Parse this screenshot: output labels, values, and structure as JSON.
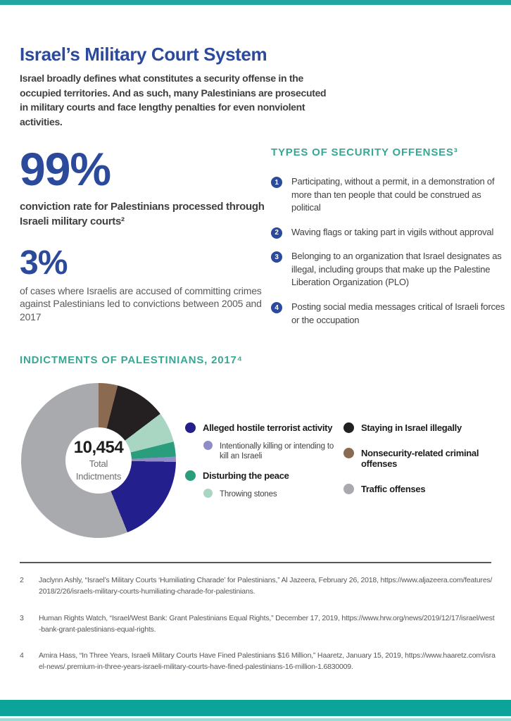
{
  "page": {
    "title": "Israel’s Military Court System",
    "intro": "Israel broadly defines what constitutes a security offense in the occupied territories. And as such, many Palestinians are prosecuted in military courts and face lengthy penalties for even nonviolent activities."
  },
  "stats": [
    {
      "value": "99%",
      "caption": "conviction rate for Palestinians processed through Israeli military courts²"
    },
    {
      "value": "3%",
      "caption": "of cases where Israelis are accused of committing crimes against Palestinians led to convictions between 2005 and 2017"
    }
  ],
  "offenses": {
    "heading": "TYPES OF SECURITY OFFENSES³",
    "items": [
      {
        "num": "1",
        "text": "Participating, without a permit, in a demonstration of more than ten people that could be construed as political"
      },
      {
        "num": "2",
        "text": "Waving flags or taking part in vigils without approval"
      },
      {
        "num": "3",
        "text": "Belonging to an organization that Israel designates as illegal, including groups that make up the Palestine Liberation Organization (PLO)"
      },
      {
        "num": "4",
        "text": "Posting social media messages critical of Israeli forces or the occupation"
      }
    ]
  },
  "chart_data": {
    "type": "pie",
    "subtype": "donut",
    "title": "INDICTMENTS OF PALESTINIANS, 2017⁴",
    "total_value": "10,454",
    "center_label": {
      "value": "10,454",
      "line1": "Total",
      "line2": "Indictments"
    },
    "slices_clockwise_from_top": [
      {
        "label": "Nonsecurity-related criminal offenses",
        "color": "#8a6a50",
        "percent": 4.0
      },
      {
        "label": "Staying in Israel illegally",
        "color": "#242021",
        "percent": 10.7
      },
      {
        "label": "Throwing stones",
        "color": "#a9d6c3",
        "percent": 6.4
      },
      {
        "label": "Disturbing the peace",
        "color": "#2a9d7d",
        "percent": 3.1
      },
      {
        "label": "Intentionally killing or intending to kill an Israeli",
        "color": "#8f8cc9",
        "percent": 1.1
      },
      {
        "label": "Alleged hostile terrorist activity",
        "color": "#231f8d",
        "percent": 18.6
      },
      {
        "label": "Traffic offenses",
        "color": "#a8aaad",
        "percent": 56.1
      }
    ],
    "legend_left": [
      {
        "label": "Alleged hostile terrorist activity",
        "color": "#231f8d",
        "style": "main"
      },
      {
        "label": "Intentionally killing or intending to kill an Israeli",
        "color": "#8f8cc9",
        "style": "sub"
      },
      {
        "label": "Disturbing the peace",
        "color": "#2a9d7d",
        "style": "main"
      },
      {
        "label": "Throwing stones",
        "color": "#a9d6c3",
        "style": "sub"
      }
    ],
    "legend_right": [
      {
        "label": "Staying in Israel illegally",
        "color": "#242021",
        "style": "main"
      },
      {
        "label": "Nonsecurity-related criminal offenses",
        "color": "#8a6a50",
        "style": "main"
      },
      {
        "label": "Traffic offenses",
        "color": "#a8aaad",
        "style": "main"
      }
    ],
    "legend_position": "right of donut, two columns"
  },
  "footnotes": [
    {
      "num": "2",
      "text": "Jaclynn Ashly, “Israel’s Military Courts ‘Humiliating Charade’ for Palestinians,” Al Jazeera, February 26, 2018, https://www.aljazeera.com/features/2018/2/26/israels-military-courts-humiliating-charade-for-palestinians."
    },
    {
      "num": "3",
      "text": "Human Rights Watch, “Israel/West Bank: Grant Palestinians Equal Rights,” December 17, 2019, https://www.hrw.org/news/2019/12/17/israel/west-bank-grant-palestinians-equal-rights."
    },
    {
      "num": "4",
      "text": "Amira Hass, “In Three Years, Israeli Military Courts Have Fined Palestinians $16 Million,” Haaretz, January 15, 2019, https://www.haaretz.com/israel-news/.premium-in-three-years-israeli-military-courts-have-fined-palestinians-16-million-1.6830009."
    }
  ],
  "colors": {
    "accent_teal_bar": "#23a7a0",
    "bottom_teal_bar": "#0ca39b",
    "bottom_light_strip": "#9edbd8",
    "heading_blue": "#2b4a9c",
    "heading_teal": "#38a794",
    "body_dark": "#414042",
    "body_gray": "#58595b",
    "footnote_gray": "#55565a"
  }
}
